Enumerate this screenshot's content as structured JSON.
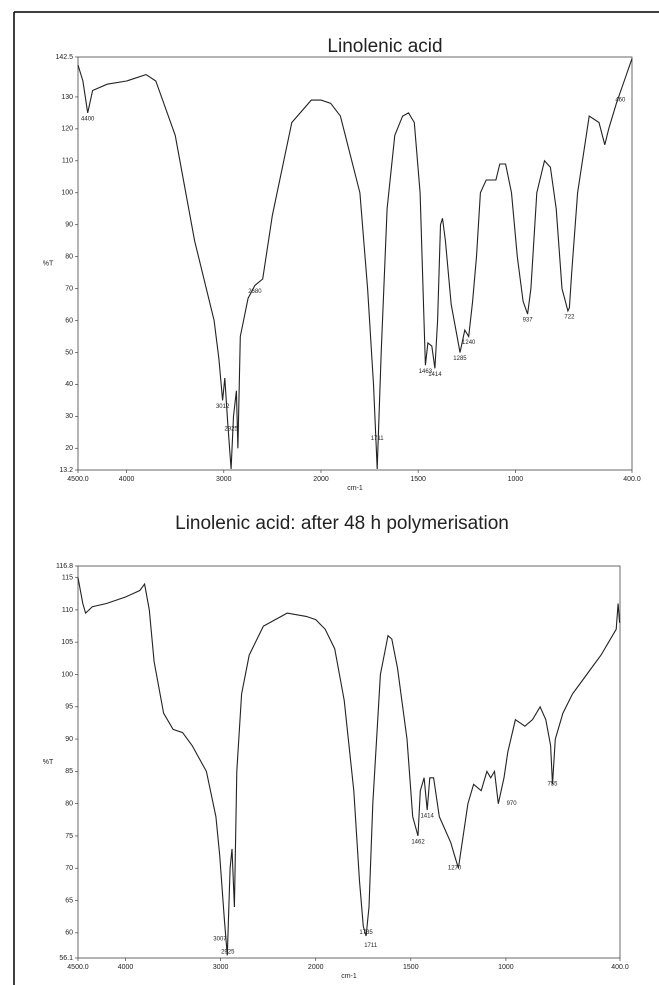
{
  "chart_data": [
    {
      "type": "line",
      "title": "Linolenic acid",
      "xlabel": "cm-1",
      "ylabel": "%T",
      "color": "#222222",
      "xlim": [
        4500,
        400
      ],
      "x_scale_change": 2000,
      "ylim": [
        13.2,
        142.5
      ],
      "xticks": [
        {
          "value": 4500,
          "label": "4500.0"
        },
        4000,
        3000,
        2000,
        1500,
        1000,
        {
          "value": 400,
          "label": "400.0"
        }
      ],
      "yticks": [
        13.2,
        20,
        30,
        40,
        50,
        60,
        70,
        80,
        90,
        100,
        110,
        120,
        130,
        142.5
      ],
      "x": [
        4500,
        4450,
        4400,
        4350,
        4200,
        4000,
        3800,
        3700,
        3500,
        3300,
        3100,
        3050,
        3012,
        2990,
        2960,
        2925,
        2900,
        2870,
        2855,
        2830,
        2750,
        2680,
        2600,
        2500,
        2300,
        2100,
        2000,
        1950,
        1900,
        1800,
        1760,
        1730,
        1711,
        1690,
        1660,
        1620,
        1580,
        1550,
        1520,
        1490,
        1470,
        1463,
        1450,
        1430,
        1414,
        1400,
        1385,
        1375,
        1360,
        1330,
        1300,
        1285,
        1260,
        1240,
        1220,
        1200,
        1180,
        1150,
        1100,
        1080,
        1050,
        1020,
        990,
        960,
        937,
        920,
        890,
        850,
        820,
        790,
        760,
        730,
        722,
        710,
        680,
        620,
        570,
        540,
        520,
        480,
        440,
        400
      ],
      "values": [
        140,
        135,
        125,
        132,
        134,
        135,
        137,
        135,
        118,
        85,
        60,
        48,
        35,
        42,
        28,
        13.5,
        30,
        38,
        20,
        55,
        67,
        71,
        73,
        93,
        122,
        129,
        129,
        128,
        124,
        100,
        70,
        40,
        13.5,
        50,
        95,
        118,
        124,
        125,
        122,
        100,
        60,
        46,
        53,
        52,
        45,
        60,
        90,
        92,
        85,
        65,
        55,
        50,
        57,
        55,
        66,
        80,
        100,
        104,
        104,
        109,
        109,
        100,
        80,
        66,
        62,
        70,
        100,
        110,
        108,
        95,
        70,
        63,
        64,
        75,
        100,
        124,
        122,
        115,
        120,
        128,
        135,
        142
      ],
      "annotations": [
        {
          "text": "4400",
          "x": 4400,
          "y": 125
        },
        {
          "text": "3012",
          "x": 3012,
          "y": 35
        },
        {
          "text": "2925",
          "x": 2925,
          "y": 28
        },
        {
          "text": "2680",
          "x": 2680,
          "y": 71
        },
        {
          "text": "1711",
          "x": 1711,
          "y": 25
        },
        {
          "text": "1463",
          "x": 1463,
          "y": 46
        },
        {
          "text": "1414",
          "x": 1414,
          "y": 45
        },
        {
          "text": "1285",
          "x": 1285,
          "y": 50
        },
        {
          "text": "1240",
          "x": 1240,
          "y": 55
        },
        {
          "text": "937",
          "x": 937,
          "y": 62
        },
        {
          "text": "722",
          "x": 722,
          "y": 63
        },
        {
          "text": "460",
          "x": 460,
          "y": 131
        }
      ]
    },
    {
      "type": "line",
      "title": "Linolenic acid: after 48 h polymerisation",
      "xlabel": "cm-1",
      "ylabel": "%T",
      "color": "#222222",
      "xlim": [
        4500,
        400
      ],
      "x_scale_change": 2000,
      "ylim": [
        56.1,
        116.8
      ],
      "xticks": [
        {
          "value": 4500,
          "label": "4500.0"
        },
        4000,
        3000,
        2000,
        1500,
        1000,
        {
          "value": 400,
          "label": "400.0"
        }
      ],
      "yticks": [
        56.1,
        60,
        65,
        70,
        75,
        80,
        85,
        90,
        95,
        100,
        105,
        110,
        115,
        116.8
      ],
      "x": [
        4500,
        4450,
        4420,
        4350,
        4200,
        4000,
        3850,
        3800,
        3750,
        3700,
        3600,
        3500,
        3400,
        3300,
        3150,
        3050,
        3010,
        2960,
        2930,
        2900,
        2880,
        2855,
        2830,
        2780,
        2700,
        2550,
        2300,
        2100,
        2000,
        1950,
        1900,
        1850,
        1800,
        1770,
        1750,
        1735,
        1720,
        1700,
        1660,
        1620,
        1600,
        1570,
        1520,
        1490,
        1462,
        1450,
        1430,
        1414,
        1400,
        1380,
        1350,
        1320,
        1290,
        1270,
        1250,
        1230,
        1200,
        1170,
        1130,
        1100,
        1080,
        1060,
        1040,
        1010,
        990,
        950,
        900,
        860,
        820,
        790,
        765,
        755,
        740,
        700,
        650,
        600,
        550,
        500,
        460,
        420,
        410,
        402
      ],
      "values": [
        115,
        111,
        109.5,
        110.5,
        111,
        112,
        113,
        114,
        110,
        102,
        94,
        91.5,
        91,
        89,
        85,
        78,
        72,
        62,
        56.5,
        70,
        73,
        64,
        85,
        97,
        103,
        107.5,
        109.5,
        109,
        108.5,
        107,
        104,
        96,
        82,
        68,
        61,
        59.5,
        64,
        80,
        100,
        106,
        105.5,
        101,
        90,
        78,
        75,
        82,
        84,
        79,
        84,
        84,
        78,
        76,
        74,
        72,
        70,
        74,
        80,
        83,
        82,
        85,
        84,
        85,
        80,
        84,
        88,
        93,
        92,
        93,
        95,
        93,
        89,
        83,
        90,
        94,
        97,
        99,
        101,
        103,
        105,
        107,
        111,
        108
      ],
      "annotations": [
        {
          "text": "3007",
          "x": 3007,
          "y": 60
        },
        {
          "text": "2925",
          "x": 2925,
          "y": 58
        },
        {
          "text": "1735",
          "x": 1735,
          "y": 61
        },
        {
          "text": "1711",
          "x": 1711,
          "y": 59
        },
        {
          "text": "1462",
          "x": 1462,
          "y": 75
        },
        {
          "text": "1414",
          "x": 1414,
          "y": 79
        },
        {
          "text": "1270",
          "x": 1270,
          "y": 71
        },
        {
          "text": "970",
          "x": 970,
          "y": 81
        },
        {
          "text": "755",
          "x": 755,
          "y": 84
        }
      ]
    }
  ]
}
